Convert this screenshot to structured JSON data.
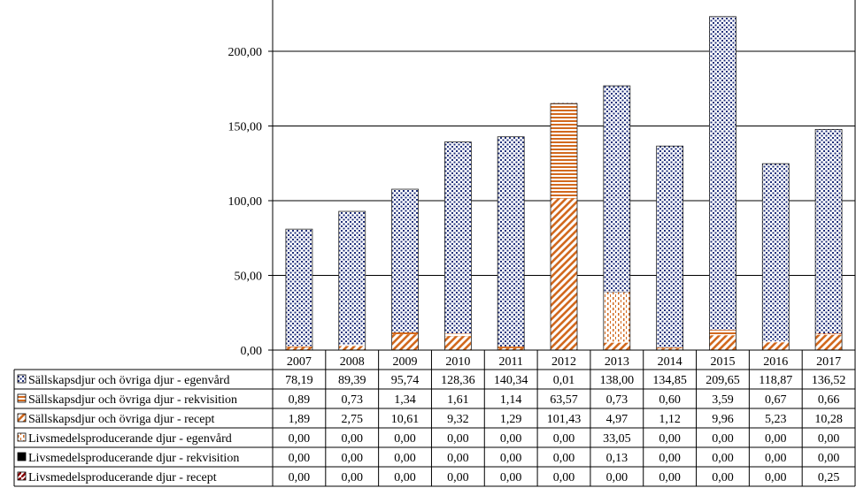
{
  "chart_data": {
    "type": "bar",
    "stacked": true,
    "categories": [
      "2007",
      "2008",
      "2009",
      "2010",
      "2011",
      "2012",
      "2013",
      "2014",
      "2015",
      "2016",
      "2017"
    ],
    "y_ticks": [
      "0,00",
      "50,00",
      "100,00",
      "150,00",
      "200,00"
    ],
    "ylim": [
      0,
      232
    ],
    "grid": true,
    "legend_placement": "data-table-left",
    "series": [
      {
        "name": "Sällskapsdjur och övriga djur - egenvård",
        "values": [
          78.19,
          89.39,
          95.74,
          128.36,
          140.34,
          0.01,
          138.0,
          134.85,
          209.65,
          118.87,
          136.52
        ],
        "labels": [
          "78,19",
          "89,39",
          "95,74",
          "128,36",
          "140,34",
          "0,01",
          "138,00",
          "134,85",
          "209,65",
          "118,87",
          "136,52"
        ],
        "color": "#1f2f7a",
        "pattern": "dots-navy"
      },
      {
        "name": "Sällskapsdjur och övriga djur - rekvisition",
        "values": [
          0.89,
          0.73,
          1.34,
          1.61,
          1.14,
          63.57,
          0.73,
          0.6,
          3.59,
          0.67,
          0.66
        ],
        "labels": [
          "0,89",
          "0,73",
          "1,34",
          "1,61",
          "1,14",
          "63,57",
          "0,73",
          "0,60",
          "3,59",
          "0,67",
          "0,66"
        ],
        "color": "#d2691e",
        "pattern": "hlines-orange"
      },
      {
        "name": "Sällskapsdjur och övriga djur - recept",
        "values": [
          1.89,
          2.75,
          10.61,
          9.32,
          1.29,
          101.43,
          4.97,
          1.12,
          9.96,
          5.23,
          10.28
        ],
        "labels": [
          "1,89",
          "2,75",
          "10,61",
          "9,32",
          "1,29",
          "101,43",
          "4,97",
          "1,12",
          "9,96",
          "5,23",
          "10,28"
        ],
        "color": "#d2691e",
        "pattern": "diag-orange"
      },
      {
        "name": "Livsmedelsproducerande djur - egenvård",
        "values": [
          0,
          0,
          0,
          0,
          0,
          0,
          33.05,
          0,
          0,
          0,
          0
        ],
        "labels": [
          "0,00",
          "0,00",
          "0,00",
          "0,00",
          "0,00",
          "0,00",
          "33,05",
          "0,00",
          "0,00",
          "0,00",
          "0,00"
        ],
        "color": "#d2691e",
        "pattern": "vdots-orange"
      },
      {
        "name": "Livsmedelsproducerande djur - rekvisition",
        "values": [
          0,
          0,
          0,
          0,
          0,
          0,
          0.13,
          0,
          0,
          0,
          0
        ],
        "labels": [
          "0,00",
          "0,00",
          "0,00",
          "0,00",
          "0,00",
          "0,00",
          "0,13",
          "0,00",
          "0,00",
          "0,00",
          "0,00"
        ],
        "color": "#000000",
        "pattern": "solid-black"
      },
      {
        "name": "Livsmedelsproducerande djur - recept",
        "values": [
          0,
          0,
          0,
          0,
          0,
          0,
          0,
          0,
          0,
          0,
          0.25
        ],
        "labels": [
          "0,00",
          "0,00",
          "0,00",
          "0,00",
          "0,00",
          "0,00",
          "0,00",
          "0,00",
          "0,00",
          "0,00",
          "0,25"
        ],
        "color": "#8b0000",
        "pattern": "diag-dark"
      }
    ]
  }
}
